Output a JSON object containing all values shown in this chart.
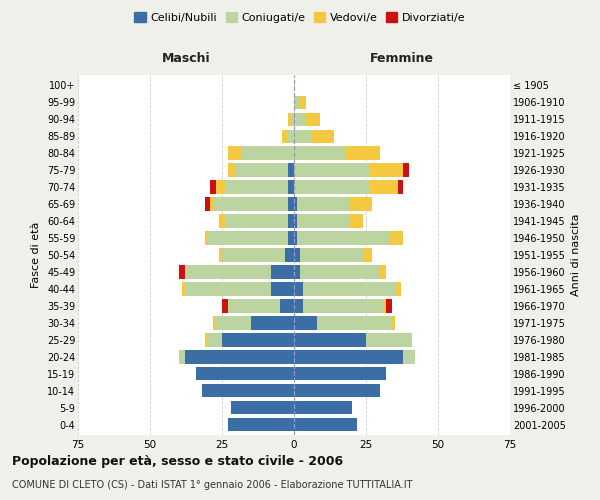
{
  "age_groups": [
    "0-4",
    "5-9",
    "10-14",
    "15-19",
    "20-24",
    "25-29",
    "30-34",
    "35-39",
    "40-44",
    "45-49",
    "50-54",
    "55-59",
    "60-64",
    "65-69",
    "70-74",
    "75-79",
    "80-84",
    "85-89",
    "90-94",
    "95-99",
    "100+"
  ],
  "birth_years": [
    "2001-2005",
    "1996-2000",
    "1991-1995",
    "1986-1990",
    "1981-1985",
    "1976-1980",
    "1971-1975",
    "1966-1970",
    "1961-1965",
    "1956-1960",
    "1951-1955",
    "1946-1950",
    "1941-1945",
    "1936-1940",
    "1931-1935",
    "1926-1930",
    "1921-1925",
    "1916-1920",
    "1911-1915",
    "1906-1910",
    "≤ 1905"
  ],
  "males": {
    "celibi": [
      23,
      22,
      32,
      34,
      38,
      25,
      15,
      5,
      8,
      8,
      3,
      2,
      2,
      2,
      2,
      2,
      0,
      0,
      0,
      0,
      0
    ],
    "coniugati": [
      0,
      0,
      0,
      0,
      2,
      5,
      12,
      18,
      30,
      30,
      22,
      28,
      22,
      26,
      22,
      18,
      18,
      2,
      1,
      0,
      0
    ],
    "vedovi": [
      0,
      0,
      0,
      0,
      0,
      1,
      1,
      0,
      1,
      0,
      1,
      1,
      2,
      1,
      3,
      3,
      5,
      2,
      1,
      0,
      0
    ],
    "divorziati": [
      0,
      0,
      0,
      0,
      0,
      0,
      0,
      2,
      0,
      2,
      0,
      0,
      0,
      2,
      2,
      0,
      0,
      0,
      0,
      0,
      0
    ]
  },
  "females": {
    "nubili": [
      22,
      20,
      30,
      32,
      38,
      25,
      8,
      3,
      3,
      2,
      2,
      1,
      1,
      1,
      0,
      0,
      0,
      0,
      0,
      0,
      0
    ],
    "coniugate": [
      0,
      0,
      0,
      0,
      4,
      16,
      26,
      28,
      32,
      28,
      22,
      32,
      18,
      18,
      26,
      26,
      18,
      6,
      4,
      2,
      0
    ],
    "vedove": [
      0,
      0,
      0,
      0,
      0,
      0,
      1,
      1,
      2,
      2,
      3,
      5,
      5,
      8,
      10,
      12,
      12,
      8,
      5,
      2,
      0
    ],
    "divorziate": [
      0,
      0,
      0,
      0,
      0,
      0,
      0,
      2,
      0,
      0,
      0,
      0,
      0,
      0,
      2,
      2,
      0,
      0,
      0,
      0,
      0
    ]
  },
  "colors": {
    "celibi_nubili": "#3a6ea5",
    "coniugati": "#bcd4a0",
    "vedovi": "#f5c842",
    "divorziati": "#cc1111"
  },
  "xlim": 75,
  "title": "Popolazione per età, sesso e stato civile - 2006",
  "subtitle": "COMUNE DI CLETO (CS) - Dati ISTAT 1° gennaio 2006 - Elaborazione TUTTITALIA.IT",
  "ylabel_left": "Fasce di età",
  "ylabel_right": "Anni di nascita",
  "header_left": "Maschi",
  "header_right": "Femmine",
  "bg_color": "#f0f0eb",
  "plot_bg": "#ffffff"
}
